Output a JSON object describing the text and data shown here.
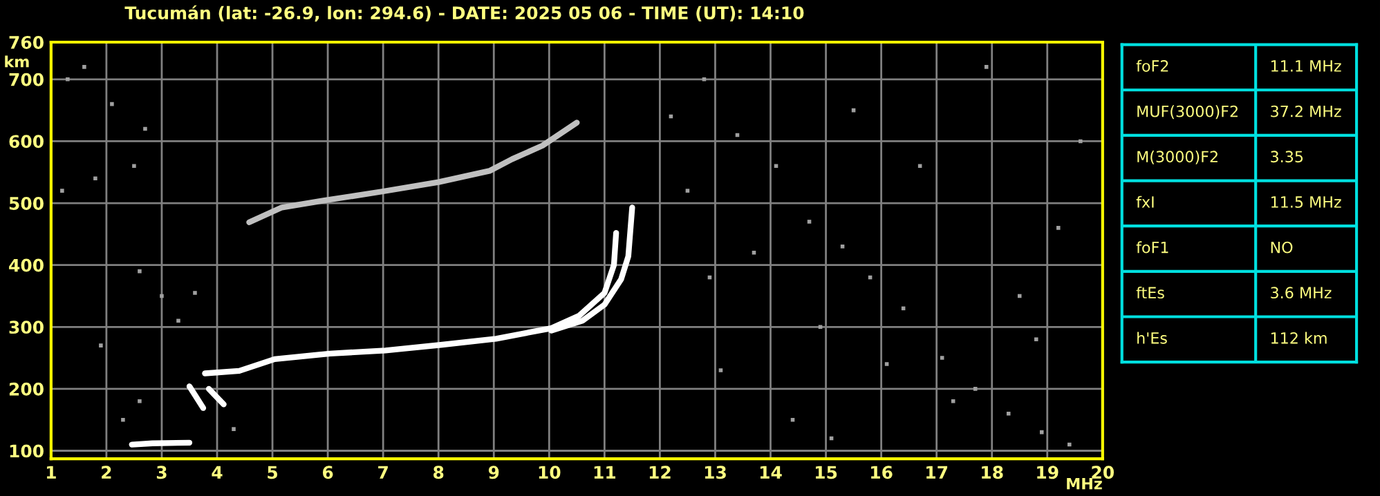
{
  "chart_data": [
    {
      "type": "line",
      "title": "Tucumán (lat: -26.9, lon: 294.6) - DATE: 2025 05 06 - TIME (UT): 14:10",
      "xlabel": "MHz",
      "ylabel": "km",
      "xlim": [
        1,
        20
      ],
      "ylim": [
        87,
        760
      ],
      "xticks": [
        1,
        2,
        3,
        4,
        5,
        6,
        7,
        8,
        9,
        10,
        11,
        12,
        13,
        14,
        15,
        16,
        17,
        18,
        19,
        20
      ],
      "yticks": [
        100,
        200,
        300,
        400,
        500,
        600,
        700,
        760
      ],
      "grid": true,
      "legend": false,
      "series": [
        {
          "color": "#ffffff",
          "x": [
            3.78,
            4.4,
            5.04,
            6.04,
            7.04,
            8.04,
            9.04,
            10.04,
            10.54,
            11.0,
            11.17,
            11.21
          ],
          "values": [
            225,
            229,
            248,
            257,
            262,
            271,
            281,
            298,
            318,
            355,
            400,
            452
          ]
        },
        {
          "color": "#ffffff",
          "x": [
            10.04,
            10.6,
            11.0,
            11.3,
            11.43,
            11.5
          ],
          "values": [
            294,
            310,
            336,
            377,
            414,
            493
          ]
        },
        {
          "color": "#ffffff",
          "x": [
            2.46,
            2.83,
            3.5
          ],
          "values": [
            110,
            112,
            113
          ]
        },
        {
          "color": "#ffffff",
          "x": [
            3.5,
            3.75
          ],
          "values": [
            204,
            169
          ]
        },
        {
          "color": "#ffffff",
          "x": [
            3.85,
            4.12
          ],
          "values": [
            200,
            175
          ]
        },
        {
          "color": "#c0c0c0",
          "x": [
            4.58,
            5.17,
            5.92,
            7.0,
            8.0,
            8.92,
            9.33,
            9.88,
            10.5
          ],
          "values": [
            469,
            493,
            504,
            519,
            534,
            552,
            571,
            593,
            630
          ]
        },
        {
          "type": "scatter",
          "marker": "square",
          "color": "#a0a0a0",
          "x": [
            1.3,
            1.6,
            1.8,
            2.1,
            2.5,
            2.6,
            2.7,
            3.0,
            3.3,
            3.6,
            4.3,
            1.2,
            1.9,
            2.3,
            2.6,
            12.2,
            12.8,
            13.4,
            14.1,
            14.7,
            15.3,
            15.8,
            16.4,
            17.1,
            17.7,
            18.3,
            18.9,
            19.4,
            12.5,
            13.7,
            14.9,
            16.1,
            17.3,
            18.5,
            19.6,
            13.1,
            15.5,
            17.9,
            19.2,
            14.4,
            16.7,
            18.8,
            12.9,
            15.1
          ],
          "values": [
            700,
            720,
            540,
            660,
            560,
            390,
            620,
            350,
            310,
            355,
            135,
            520,
            270,
            150,
            180,
            640,
            700,
            610,
            560,
            470,
            430,
            380,
            330,
            250,
            200,
            160,
            130,
            110,
            520,
            420,
            300,
            240,
            180,
            350,
            600,
            230,
            650,
            720,
            460,
            150,
            560,
            280,
            380,
            120
          ]
        }
      ]
    },
    {
      "type": "other",
      "annotations": [
        "foF2",
        "11.1 MHz",
        "MUF(3000)F2",
        "37.2 MHz",
        "M(3000)F2",
        "3.35",
        "fxI",
        "11.5 MHz",
        "foF1",
        "NO",
        "ftEs",
        "3.6 MHz",
        "h'Es",
        "112 km"
      ]
    }
  ]
}
